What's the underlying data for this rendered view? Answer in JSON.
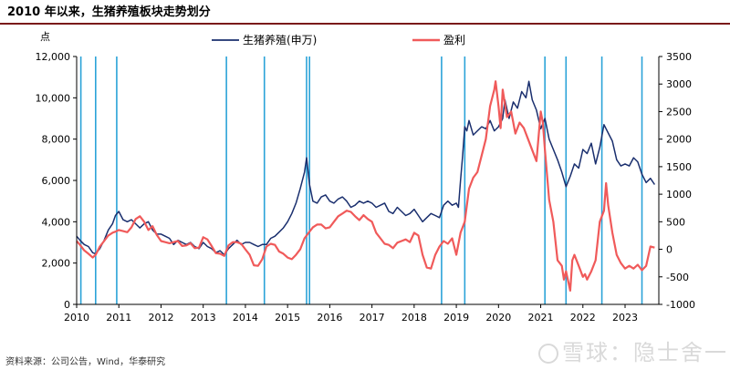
{
  "title": "2010 年以来，生猪养殖板块走势划分",
  "source": "资料来源：公司公告，Wind，华泰研究",
  "watermark": "雪球：隐士舍一",
  "chart_data": {
    "type": "line",
    "y_unit_label": "点",
    "x_ticks": [
      "2010",
      "2011",
      "2012",
      "2013",
      "2014",
      "2015",
      "2016",
      "2017",
      "2018",
      "2019",
      "2020",
      "2021",
      "2022",
      "2023"
    ],
    "y_left_ticks": [
      "0",
      "2,000",
      "4,000",
      "6,000",
      "8,000",
      "10,000",
      "12,000"
    ],
    "y_right_ticks": [
      "-1000",
      "-500",
      "0",
      "500",
      "1000",
      "1500",
      "2000",
      "2500",
      "3000",
      "3500"
    ],
    "ylim_left": [
      0,
      12000
    ],
    "ylim_right": [
      -1000,
      3500
    ],
    "xlim": [
      2010.0,
      2023.8
    ],
    "grid": false,
    "legend_position": "top-center",
    "colors": {
      "index": "#1a2f6e",
      "profit": "#f05a5a",
      "divider": "#2ba3d8"
    },
    "series": [
      {
        "name": "生猪养殖(申万)",
        "axis": "left",
        "points": [
          [
            2010.0,
            3300
          ],
          [
            2010.08,
            3100
          ],
          [
            2010.18,
            2900
          ],
          [
            2010.28,
            2800
          ],
          [
            2010.38,
            2500
          ],
          [
            2010.45,
            2450
          ],
          [
            2010.55,
            2700
          ],
          [
            2010.65,
            3100
          ],
          [
            2010.75,
            3600
          ],
          [
            2010.85,
            3900
          ],
          [
            2010.92,
            4300
          ],
          [
            2011.0,
            4500
          ],
          [
            2011.1,
            4100
          ],
          [
            2011.2,
            4000
          ],
          [
            2011.3,
            4100
          ],
          [
            2011.4,
            3900
          ],
          [
            2011.5,
            3700
          ],
          [
            2011.6,
            3900
          ],
          [
            2011.7,
            4000
          ],
          [
            2011.8,
            3600
          ],
          [
            2011.9,
            3400
          ],
          [
            2012.0,
            3400
          ],
          [
            2012.1,
            3300
          ],
          [
            2012.2,
            3200
          ],
          [
            2012.3,
            2900
          ],
          [
            2012.4,
            3100
          ],
          [
            2012.5,
            3000
          ],
          [
            2012.6,
            2900
          ],
          [
            2012.7,
            3000
          ],
          [
            2012.8,
            2800
          ],
          [
            2012.9,
            2700
          ],
          [
            2013.0,
            3000
          ],
          [
            2013.1,
            2800
          ],
          [
            2013.2,
            2700
          ],
          [
            2013.3,
            2500
          ],
          [
            2013.4,
            2600
          ],
          [
            2013.5,
            2400
          ],
          [
            2013.6,
            2700
          ],
          [
            2013.7,
            2900
          ],
          [
            2013.8,
            3100
          ],
          [
            2013.9,
            2900
          ],
          [
            2014.0,
            3000
          ],
          [
            2014.1,
            3000
          ],
          [
            2014.2,
            2900
          ],
          [
            2014.3,
            2800
          ],
          [
            2014.4,
            2900
          ],
          [
            2014.5,
            2900
          ],
          [
            2014.6,
            3200
          ],
          [
            2014.7,
            3300
          ],
          [
            2014.8,
            3500
          ],
          [
            2014.9,
            3700
          ],
          [
            2015.0,
            4000
          ],
          [
            2015.1,
            4400
          ],
          [
            2015.2,
            4900
          ],
          [
            2015.3,
            5600
          ],
          [
            2015.4,
            6400
          ],
          [
            2015.45,
            7100
          ],
          [
            2015.52,
            5800
          ],
          [
            2015.6,
            5000
          ],
          [
            2015.7,
            4900
          ],
          [
            2015.8,
            5200
          ],
          [
            2015.9,
            5300
          ],
          [
            2016.0,
            5000
          ],
          [
            2016.1,
            4900
          ],
          [
            2016.2,
            5100
          ],
          [
            2016.3,
            5200
          ],
          [
            2016.4,
            5000
          ],
          [
            2016.5,
            4700
          ],
          [
            2016.6,
            4800
          ],
          [
            2016.7,
            5000
          ],
          [
            2016.8,
            4900
          ],
          [
            2016.9,
            5000
          ],
          [
            2017.0,
            4900
          ],
          [
            2017.1,
            4700
          ],
          [
            2017.2,
            4800
          ],
          [
            2017.3,
            4900
          ],
          [
            2017.4,
            4500
          ],
          [
            2017.5,
            4400
          ],
          [
            2017.6,
            4700
          ],
          [
            2017.7,
            4500
          ],
          [
            2017.8,
            4300
          ],
          [
            2017.9,
            4400
          ],
          [
            2018.0,
            4600
          ],
          [
            2018.1,
            4300
          ],
          [
            2018.2,
            4000
          ],
          [
            2018.3,
            4200
          ],
          [
            2018.4,
            4400
          ],
          [
            2018.5,
            4300
          ],
          [
            2018.6,
            4200
          ],
          [
            2018.7,
            4800
          ],
          [
            2018.8,
            5000
          ],
          [
            2018.9,
            4800
          ],
          [
            2019.0,
            4900
          ],
          [
            2019.05,
            4700
          ],
          [
            2019.1,
            6000
          ],
          [
            2019.15,
            7200
          ],
          [
            2019.2,
            8600
          ],
          [
            2019.25,
            8400
          ],
          [
            2019.3,
            8900
          ],
          [
            2019.4,
            8200
          ],
          [
            2019.5,
            8400
          ],
          [
            2019.6,
            8600
          ],
          [
            2019.7,
            8500
          ],
          [
            2019.8,
            8900
          ],
          [
            2019.9,
            8400
          ],
          [
            2020.0,
            8600
          ],
          [
            2020.1,
            9000
          ],
          [
            2020.15,
            9900
          ],
          [
            2020.25,
            9000
          ],
          [
            2020.35,
            9800
          ],
          [
            2020.45,
            9500
          ],
          [
            2020.55,
            10300
          ],
          [
            2020.65,
            10000
          ],
          [
            2020.72,
            10800
          ],
          [
            2020.8,
            9900
          ],
          [
            2020.9,
            9400
          ],
          [
            2021.0,
            8500
          ],
          [
            2021.1,
            9000
          ],
          [
            2021.2,
            8000
          ],
          [
            2021.3,
            7500
          ],
          [
            2021.4,
            7000
          ],
          [
            2021.5,
            6400
          ],
          [
            2021.6,
            5700
          ],
          [
            2021.7,
            6200
          ],
          [
            2021.8,
            6800
          ],
          [
            2021.9,
            6600
          ],
          [
            2022.0,
            7500
          ],
          [
            2022.1,
            7300
          ],
          [
            2022.2,
            7800
          ],
          [
            2022.3,
            6800
          ],
          [
            2022.4,
            7600
          ],
          [
            2022.5,
            8700
          ],
          [
            2022.6,
            8300
          ],
          [
            2022.7,
            7900
          ],
          [
            2022.8,
            7000
          ],
          [
            2022.9,
            6700
          ],
          [
            2023.0,
            6800
          ],
          [
            2023.1,
            6700
          ],
          [
            2023.2,
            7100
          ],
          [
            2023.3,
            6900
          ],
          [
            2023.4,
            6300
          ],
          [
            2023.5,
            5900
          ],
          [
            2023.6,
            6100
          ],
          [
            2023.7,
            5800
          ]
        ]
      },
      {
        "name": "盈利",
        "axis": "right",
        "points": [
          [
            2010.0,
            150
          ],
          [
            2010.08,
            80
          ],
          [
            2010.18,
            -20
          ],
          [
            2010.28,
            -80
          ],
          [
            2010.38,
            -150
          ],
          [
            2010.45,
            -100
          ],
          [
            2010.55,
            50
          ],
          [
            2010.65,
            150
          ],
          [
            2010.75,
            250
          ],
          [
            2010.85,
            300
          ],
          [
            2010.92,
            320
          ],
          [
            2011.0,
            350
          ],
          [
            2011.1,
            330
          ],
          [
            2011.2,
            310
          ],
          [
            2011.3,
            400
          ],
          [
            2011.4,
            550
          ],
          [
            2011.5,
            600
          ],
          [
            2011.6,
            500
          ],
          [
            2011.7,
            350
          ],
          [
            2011.8,
            420
          ],
          [
            2011.9,
            260
          ],
          [
            2012.0,
            150
          ],
          [
            2012.1,
            130
          ],
          [
            2012.2,
            110
          ],
          [
            2012.3,
            130
          ],
          [
            2012.4,
            150
          ],
          [
            2012.5,
            60
          ],
          [
            2012.6,
            70
          ],
          [
            2012.7,
            110
          ],
          [
            2012.8,
            20
          ],
          [
            2012.9,
            30
          ],
          [
            2013.0,
            220
          ],
          [
            2013.1,
            180
          ],
          [
            2013.2,
            60
          ],
          [
            2013.3,
            -70
          ],
          [
            2013.4,
            -80
          ],
          [
            2013.5,
            -120
          ],
          [
            2013.6,
            70
          ],
          [
            2013.7,
            130
          ],
          [
            2013.8,
            130
          ],
          [
            2013.9,
            100
          ],
          [
            2014.0,
            0
          ],
          [
            2014.1,
            -100
          ],
          [
            2014.2,
            -290
          ],
          [
            2014.3,
            -300
          ],
          [
            2014.4,
            -180
          ],
          [
            2014.5,
            50
          ],
          [
            2014.6,
            100
          ],
          [
            2014.7,
            80
          ],
          [
            2014.8,
            -40
          ],
          [
            2014.9,
            -80
          ],
          [
            2015.0,
            -150
          ],
          [
            2015.1,
            -180
          ],
          [
            2015.2,
            -100
          ],
          [
            2015.3,
            0
          ],
          [
            2015.4,
            200
          ],
          [
            2015.5,
            300
          ],
          [
            2015.6,
            400
          ],
          [
            2015.7,
            450
          ],
          [
            2015.8,
            450
          ],
          [
            2015.9,
            380
          ],
          [
            2016.0,
            400
          ],
          [
            2016.1,
            500
          ],
          [
            2016.2,
            600
          ],
          [
            2016.3,
            650
          ],
          [
            2016.4,
            700
          ],
          [
            2016.5,
            680
          ],
          [
            2016.6,
            600
          ],
          [
            2016.7,
            530
          ],
          [
            2016.8,
            620
          ],
          [
            2016.9,
            550
          ],
          [
            2017.0,
            500
          ],
          [
            2017.1,
            300
          ],
          [
            2017.2,
            200
          ],
          [
            2017.3,
            100
          ],
          [
            2017.4,
            80
          ],
          [
            2017.5,
            20
          ],
          [
            2017.6,
            120
          ],
          [
            2017.7,
            150
          ],
          [
            2017.8,
            180
          ],
          [
            2017.9,
            130
          ],
          [
            2018.0,
            300
          ],
          [
            2018.1,
            250
          ],
          [
            2018.2,
            -100
          ],
          [
            2018.3,
            -330
          ],
          [
            2018.4,
            -350
          ],
          [
            2018.5,
            -100
          ],
          [
            2018.6,
            50
          ],
          [
            2018.7,
            150
          ],
          [
            2018.8,
            100
          ],
          [
            2018.9,
            200
          ],
          [
            2019.0,
            -100
          ],
          [
            2019.05,
            100
          ],
          [
            2019.1,
            300
          ],
          [
            2019.2,
            500
          ],
          [
            2019.3,
            1100
          ],
          [
            2019.4,
            1300
          ],
          [
            2019.5,
            1400
          ],
          [
            2019.6,
            1700
          ],
          [
            2019.7,
            2000
          ],
          [
            2019.8,
            2600
          ],
          [
            2019.9,
            2900
          ],
          [
            2019.93,
            3050
          ],
          [
            2020.0,
            2600
          ],
          [
            2020.05,
            2200
          ],
          [
            2020.1,
            2900
          ],
          [
            2020.2,
            2400
          ],
          [
            2020.3,
            2500
          ],
          [
            2020.4,
            2100
          ],
          [
            2020.5,
            2300
          ],
          [
            2020.6,
            2200
          ],
          [
            2020.7,
            2000
          ],
          [
            2020.8,
            1800
          ],
          [
            2020.9,
            1600
          ],
          [
            2021.0,
            2500
          ],
          [
            2021.05,
            2300
          ],
          [
            2021.1,
            1800
          ],
          [
            2021.2,
            900
          ],
          [
            2021.3,
            500
          ],
          [
            2021.4,
            -200
          ],
          [
            2021.5,
            -300
          ],
          [
            2021.55,
            -550
          ],
          [
            2021.6,
            -400
          ],
          [
            2021.7,
            -750
          ],
          [
            2021.75,
            -200
          ],
          [
            2021.8,
            -100
          ],
          [
            2021.9,
            -300
          ],
          [
            2022.0,
            -500
          ],
          [
            2022.05,
            -450
          ],
          [
            2022.1,
            -550
          ],
          [
            2022.2,
            -400
          ],
          [
            2022.3,
            -200
          ],
          [
            2022.4,
            500
          ],
          [
            2022.5,
            700
          ],
          [
            2022.55,
            1200
          ],
          [
            2022.6,
            800
          ],
          [
            2022.7,
            300
          ],
          [
            2022.8,
            -100
          ],
          [
            2022.9,
            -250
          ],
          [
            2023.0,
            -350
          ],
          [
            2023.1,
            -300
          ],
          [
            2023.2,
            -350
          ],
          [
            2023.3,
            -280
          ],
          [
            2023.4,
            -380
          ],
          [
            2023.5,
            -300
          ],
          [
            2023.6,
            50
          ],
          [
            2023.7,
            30
          ]
        ]
      }
    ],
    "dividers": [
      2010.1,
      2010.45,
      2010.95,
      2013.55,
      2014.45,
      2015.45,
      2015.52,
      2018.65,
      2019.2,
      2021.1,
      2021.6,
      2022.45,
      2023.4
    ]
  }
}
